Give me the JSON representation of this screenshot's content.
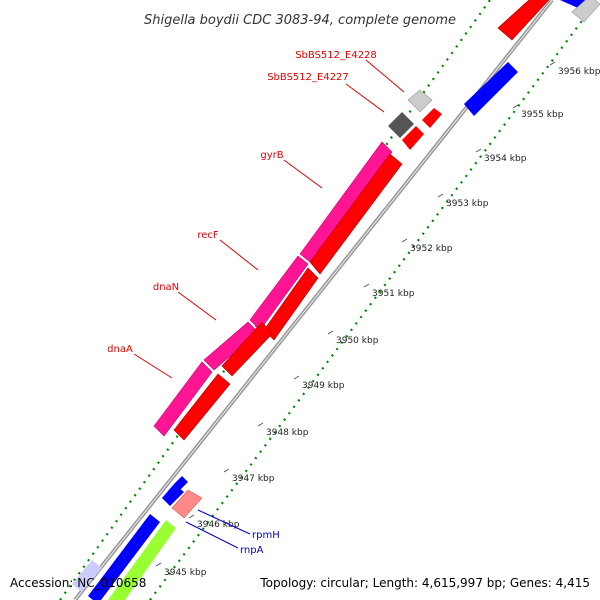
{
  "title": "Shigella boydii CDC 3083-94, complete genome",
  "footer": {
    "accession": "Accession: NC_010658",
    "summary": "Topology: circular; Length: 4,615,997 bp; Genes: 4,415"
  },
  "ticks": [
    {
      "label": "3945 kbp"
    },
    {
      "label": "3946 kbp"
    },
    {
      "label": "3947 kbp"
    },
    {
      "label": "3948 kbp"
    },
    {
      "label": "3949 kbp"
    },
    {
      "label": "3950 kbp"
    },
    {
      "label": "3951 kbp"
    },
    {
      "label": "3952 kbp"
    },
    {
      "label": "3953 kbp"
    },
    {
      "label": "3954 kbp"
    },
    {
      "label": "3955 kbp"
    },
    {
      "label": "3956 kbp"
    }
  ],
  "genes": [
    {
      "label": "SbBS512_E4228",
      "color": "#e00000"
    },
    {
      "label": "SbBS512_E4227",
      "color": "#e00000"
    },
    {
      "label": "gyrB",
      "color": "#e00000"
    },
    {
      "label": "recF",
      "color": "#e00000"
    },
    {
      "label": "dnaN",
      "color": "#e00000"
    },
    {
      "label": "dnaA",
      "color": "#e00000"
    },
    {
      "label": "rpmH",
      "color": "#0000cc"
    },
    {
      "label": "rnpA",
      "color": "#0000cc"
    }
  ],
  "colors": {
    "backbone": "#999999",
    "gc_dots": "#008800",
    "cds_forward": "#ff0000",
    "gene_pink": "#ff1493",
    "cds_blue": "#0000ff",
    "rrna_lime": "#99ff33"
  }
}
